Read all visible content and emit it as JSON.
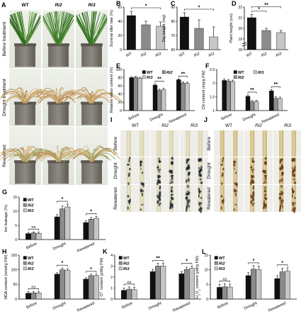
{
  "panels": {
    "A": {
      "letter": "A",
      "columns": [
        "WT",
        "Ri2",
        "Ri3"
      ],
      "rows": [
        "Before treatment",
        "Drought treatment",
        "Rewatered"
      ]
    },
    "I": {
      "letter": "I",
      "columns": [
        "WT",
        "Ri2",
        "Ri3"
      ],
      "rows": [
        "Before",
        "Drought",
        "Rewatered"
      ]
    },
    "J": {
      "letter": "J",
      "columns": [
        "WT",
        "Ri2",
        "Ri3"
      ],
      "rows": [
        "Before",
        "Drought",
        "Rewatered"
      ]
    }
  },
  "series_colors": [
    "#111111",
    "#8c8c8c",
    "#c6c6c6"
  ],
  "chart_data": [
    {
      "id": "B",
      "letter": "B",
      "type": "bar",
      "ylabel": "Survival tiller rate (%)",
      "categories": [
        "WT",
        "Ri2",
        "Ri3"
      ],
      "values": [
        48,
        35,
        33
      ],
      "errors": [
        6,
        5,
        6
      ],
      "ylim": [
        0,
        60
      ],
      "yticks": [
        0,
        20,
        40,
        60
      ],
      "sig": [
        {
          "from": 0,
          "to": 2,
          "label": "*"
        }
      ]
    },
    {
      "id": "C",
      "letter": "C",
      "type": "bar",
      "ylabel": "Dry weight (mg)",
      "categories": [
        "WT",
        "Ri2",
        "Ri3"
      ],
      "values": [
        83,
        75,
        69
      ],
      "errors": [
        3,
        6,
        7
      ],
      "ylim": [
        60,
        90
      ],
      "yticks": [
        60,
        70,
        80,
        90
      ],
      "sig": [
        {
          "from": 0,
          "to": 2,
          "label": "*"
        }
      ]
    },
    {
      "id": "D",
      "letter": "D",
      "type": "bar",
      "ylabel": "Plant height (cm)",
      "categories": [
        "WT",
        "Ri2",
        "Ri3"
      ],
      "values": [
        21,
        19.8,
        19.6
      ],
      "errors": [
        0.3,
        0.2,
        0.2
      ],
      "ylim": [
        18,
        22
      ],
      "yticks": [
        18,
        19,
        20,
        21,
        22
      ],
      "broken": true,
      "sig": [
        {
          "from": 0,
          "to": 1,
          "label": "*"
        },
        {
          "from": 0,
          "to": 2,
          "label": "**"
        }
      ]
    },
    {
      "id": "E",
      "letter": "E",
      "type": "bar",
      "ylabel": "Relative water content (%)",
      "groups": [
        "Before",
        "Drought",
        "Rewatered"
      ],
      "series": [
        {
          "name": "WT",
          "values": [
            80,
            62,
            75
          ],
          "errors": [
            2,
            3,
            2
          ]
        },
        {
          "name": "Ri2",
          "values": [
            81,
            49,
            67
          ],
          "errors": [
            2,
            3,
            3
          ]
        },
        {
          "name": "Ri3",
          "values": [
            79,
            51,
            66
          ],
          "errors": [
            2,
            3,
            3
          ]
        }
      ],
      "ylim": [
        0,
        100
      ],
      "yticks": [
        0,
        20,
        40,
        60,
        80,
        100
      ],
      "legend": [
        "WT",
        "Ri2",
        "Ri3"
      ],
      "sig": [
        {
          "group": 1,
          "label": "**"
        },
        {
          "group": 2,
          "label": "**"
        }
      ]
    },
    {
      "id": "F",
      "letter": "F",
      "type": "bar",
      "ylabel": "Chl content (mg/g FW)",
      "groups": [
        "Before",
        "Drought",
        "Rewatered"
      ],
      "series": [
        {
          "name": "WT",
          "values": [
            2.1,
            1.52,
            1.72
          ],
          "errors": [
            0.05,
            0.05,
            0.05
          ]
        },
        {
          "name": "Ri2",
          "values": [
            2.08,
            1.32,
            1.45
          ],
          "errors": [
            0.05,
            0.05,
            0.05
          ]
        },
        {
          "name": "Ri3",
          "values": [
            2.06,
            1.33,
            1.44
          ],
          "errors": [
            0.05,
            0.05,
            0.05
          ]
        }
      ],
      "ylim": [
        1.0,
        2.5
      ],
      "yticks": [
        1.0,
        1.5,
        2.0,
        2.5
      ],
      "legend": [
        "WT",
        "Ri3",
        "Ri2"
      ],
      "sig": [
        {
          "group": 1,
          "label": "**"
        },
        {
          "group": 2,
          "label": "**"
        }
      ]
    },
    {
      "id": "G",
      "letter": "G",
      "type": "bar",
      "ylabel": "Ion leakage (%)",
      "groups": [
        "Before",
        "Drought",
        "Rewatered"
      ],
      "series": [
        {
          "name": "WT",
          "values": [
            2.1,
            8.0,
            6.0
          ],
          "errors": [
            0.4,
            0.8,
            0.6
          ]
        },
        {
          "name": "Ri2",
          "values": [
            2.3,
            10.8,
            7.2
          ],
          "errors": [
            0.4,
            1.0,
            0.6
          ]
        },
        {
          "name": "Ri3",
          "values": [
            2.2,
            11.5,
            7.5
          ],
          "errors": [
            0.4,
            1.0,
            0.6
          ]
        }
      ],
      "ylim": [
        0,
        15
      ],
      "yticks": [
        0,
        5,
        10,
        15
      ],
      "legend": [
        "WT",
        "Ri2",
        "Ri3"
      ],
      "sig": [
        {
          "group": 0,
          "label": "ns"
        },
        {
          "group": 1,
          "label": "*"
        },
        {
          "group": 2,
          "label": "*"
        }
      ]
    },
    {
      "id": "H",
      "letter": "H",
      "type": "bar",
      "ylabel": "MDA content (nmol/g FW)",
      "groups": [
        "Before",
        "Drought",
        "Rewatered"
      ],
      "series": [
        {
          "name": "WT",
          "values": [
            20,
            85,
            68
          ],
          "errors": [
            5,
            5,
            5
          ]
        },
        {
          "name": "Ri2",
          "values": [
            21,
            100,
            80
          ],
          "errors": [
            5,
            6,
            5
          ]
        },
        {
          "name": "Ri3",
          "values": [
            21,
            98,
            80
          ],
          "errors": [
            5,
            6,
            5
          ]
        }
      ],
      "ylim": [
        0,
        150
      ],
      "yticks": [
        0,
        50,
        100,
        150
      ],
      "legend": [
        "WT",
        "Ri2",
        "Ri3"
      ],
      "sig": [
        {
          "group": 0,
          "label": "ns"
        },
        {
          "group": 1,
          "label": "*"
        },
        {
          "group": 2,
          "label": "*"
        }
      ]
    },
    {
      "id": "K",
      "letter": "K",
      "type": "bar",
      "ylabel": "O2- content (μM/g FW)",
      "groups": [
        "Before",
        "Drought",
        "Rewatered"
      ],
      "series": [
        {
          "name": "WT",
          "values": [
            0.8,
            2.5,
            2.3
          ],
          "errors": [
            0.2,
            0.2,
            0.2
          ]
        },
        {
          "name": "Ri2",
          "values": [
            0.9,
            3.0,
            2.7
          ],
          "errors": [
            0.2,
            0.25,
            0.2
          ]
        },
        {
          "name": "Ri3",
          "values": [
            0.85,
            3.0,
            2.8
          ],
          "errors": [
            0.2,
            0.25,
            0.2
          ]
        }
      ],
      "ylim": [
        0,
        4
      ],
      "yticks": [
        0,
        1,
        2,
        3,
        4
      ],
      "legend": [
        "WT",
        "Ri2",
        "Ri3"
      ],
      "sig": [
        {
          "group": 0,
          "label": "ns"
        },
        {
          "group": 1,
          "label": "**"
        },
        {
          "group": 2,
          "label": "*"
        }
      ]
    },
    {
      "id": "L",
      "letter": "L",
      "type": "bar",
      "ylabel": "H2O2 content (μM/g FW)",
      "groups": [
        "Before",
        "Drought",
        "Rewatered"
      ],
      "series": [
        {
          "name": "WT",
          "values": [
            4,
            8,
            7
          ],
          "errors": [
            1,
            1,
            1
          ]
        },
        {
          "name": "Ri2",
          "values": [
            4.2,
            10.2,
            9.3
          ],
          "errors": [
            1,
            1.2,
            1.2
          ]
        },
        {
          "name": "Ri3",
          "values": [
            4.1,
            10,
            9.5
          ],
          "errors": [
            1,
            1.2,
            1.2
          ]
        }
      ],
      "ylim": [
        0,
        15
      ],
      "yticks": [
        0,
        5,
        10,
        15
      ],
      "legend": [
        "WT",
        "Ri2",
        "Ri3"
      ],
      "sig": [
        {
          "group": 0,
          "label": "ns"
        },
        {
          "group": 1,
          "label": "*"
        },
        {
          "group": 2,
          "label": "*"
        }
      ]
    }
  ]
}
